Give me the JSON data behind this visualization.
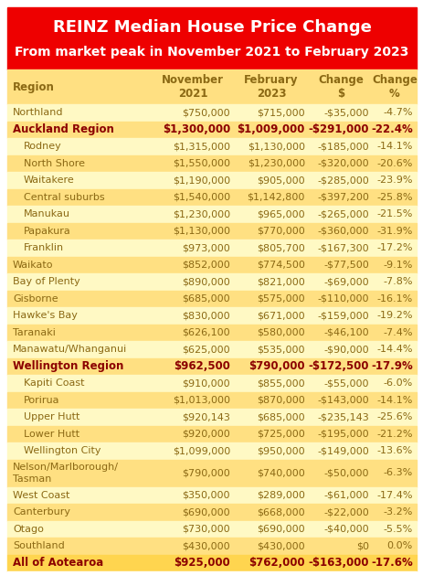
{
  "title_line1": "REINZ Median House Price Change",
  "title_line2": "From market peak in November 2021 to February 2023",
  "title_bg": "#EE0000",
  "title_fg": "#FFFFFF",
  "header_bg": "#FFE082",
  "rows": [
    {
      "region": "Northland",
      "bold": false,
      "indent": false,
      "nov": "$750,000",
      "feb": "$715,000",
      "chg_d": "-$35,000",
      "chg_p": "-4.7%",
      "bg": "#FFF9C4",
      "multiline": false
    },
    {
      "region": "Auckland Region",
      "bold": true,
      "indent": false,
      "nov": "$1,300,000",
      "feb": "$1,009,000",
      "chg_d": "-$291,000",
      "chg_p": "-22.4%",
      "bg": "#FFE082",
      "multiline": false
    },
    {
      "region": "Rodney",
      "bold": false,
      "indent": true,
      "nov": "$1,315,000",
      "feb": "$1,130,000",
      "chg_d": "-$185,000",
      "chg_p": "-14.1%",
      "bg": "#FFF9C4",
      "multiline": false
    },
    {
      "region": "North Shore",
      "bold": false,
      "indent": true,
      "nov": "$1,550,000",
      "feb": "$1,230,000",
      "chg_d": "-$320,000",
      "chg_p": "-20.6%",
      "bg": "#FFE082",
      "multiline": false
    },
    {
      "region": "Waitakere",
      "bold": false,
      "indent": true,
      "nov": "$1,190,000",
      "feb": "$905,000",
      "chg_d": "-$285,000",
      "chg_p": "-23.9%",
      "bg": "#FFF9C4",
      "multiline": false
    },
    {
      "region": "Central suburbs",
      "bold": false,
      "indent": true,
      "nov": "$1,540,000",
      "feb": "$1,142,800",
      "chg_d": "-$397,200",
      "chg_p": "-25.8%",
      "bg": "#FFE082",
      "multiline": false
    },
    {
      "region": "Manukau",
      "bold": false,
      "indent": true,
      "nov": "$1,230,000",
      "feb": "$965,000",
      "chg_d": "-$265,000",
      "chg_p": "-21.5%",
      "bg": "#FFF9C4",
      "multiline": false
    },
    {
      "region": "Papakura",
      "bold": false,
      "indent": true,
      "nov": "$1,130,000",
      "feb": "$770,000",
      "chg_d": "-$360,000",
      "chg_p": "-31.9%",
      "bg": "#FFE082",
      "multiline": false
    },
    {
      "region": "Franklin",
      "bold": false,
      "indent": true,
      "nov": "$973,000",
      "feb": "$805,700",
      "chg_d": "-$167,300",
      "chg_p": "-17.2%",
      "bg": "#FFF9C4",
      "multiline": false
    },
    {
      "region": "Waikato",
      "bold": false,
      "indent": false,
      "nov": "$852,000",
      "feb": "$774,500",
      "chg_d": "-$77,500",
      "chg_p": "-9.1%",
      "bg": "#FFE082",
      "multiline": false
    },
    {
      "region": "Bay of Plenty",
      "bold": false,
      "indent": false,
      "nov": "$890,000",
      "feb": "$821,000",
      "chg_d": "-$69,000",
      "chg_p": "-7.8%",
      "bg": "#FFF9C4",
      "multiline": false
    },
    {
      "region": "Gisborne",
      "bold": false,
      "indent": false,
      "nov": "$685,000",
      "feb": "$575,000",
      "chg_d": "-$110,000",
      "chg_p": "-16.1%",
      "bg": "#FFE082",
      "multiline": false
    },
    {
      "region": "Hawke's Bay",
      "bold": false,
      "indent": false,
      "nov": "$830,000",
      "feb": "$671,000",
      "chg_d": "-$159,000",
      "chg_p": "-19.2%",
      "bg": "#FFF9C4",
      "multiline": false
    },
    {
      "region": "Taranaki",
      "bold": false,
      "indent": false,
      "nov": "$626,100",
      "feb": "$580,000",
      "chg_d": "-$46,100",
      "chg_p": "-7.4%",
      "bg": "#FFE082",
      "multiline": false
    },
    {
      "region": "Manawatu/Whanganui",
      "bold": false,
      "indent": false,
      "nov": "$625,000",
      "feb": "$535,000",
      "chg_d": "-$90,000",
      "chg_p": "-14.4%",
      "bg": "#FFF9C4",
      "multiline": false
    },
    {
      "region": "Wellington Region",
      "bold": true,
      "indent": false,
      "nov": "$962,500",
      "feb": "$790,000",
      "chg_d": "-$172,500",
      "chg_p": "-17.9%",
      "bg": "#FFE082",
      "multiline": false
    },
    {
      "region": "Kapiti Coast",
      "bold": false,
      "indent": true,
      "nov": "$910,000",
      "feb": "$855,000",
      "chg_d": "-$55,000",
      "chg_p": "-6.0%",
      "bg": "#FFF9C4",
      "multiline": false
    },
    {
      "region": "Porirua",
      "bold": false,
      "indent": true,
      "nov": "$1,013,000",
      "feb": "$870,000",
      "chg_d": "-$143,000",
      "chg_p": "-14.1%",
      "bg": "#FFE082",
      "multiline": false
    },
    {
      "region": "Upper Hutt",
      "bold": false,
      "indent": true,
      "nov": "$920,143",
      "feb": "$685,000",
      "chg_d": "-$235,143",
      "chg_p": "-25.6%",
      "bg": "#FFF9C4",
      "multiline": false
    },
    {
      "region": "Lower Hutt",
      "bold": false,
      "indent": true,
      "nov": "$920,000",
      "feb": "$725,000",
      "chg_d": "-$195,000",
      "chg_p": "-21.2%",
      "bg": "#FFE082",
      "multiline": false
    },
    {
      "region": "Wellington City",
      "bold": false,
      "indent": true,
      "nov": "$1,099,000",
      "feb": "$950,000",
      "chg_d": "-$149,000",
      "chg_p": "-13.6%",
      "bg": "#FFF9C4",
      "multiline": false
    },
    {
      "region": "Nelson/Marlborough/\nTasman",
      "bold": false,
      "indent": false,
      "nov": "$790,000",
      "feb": "$740,000",
      "chg_d": "-$50,000",
      "chg_p": "-6.3%",
      "bg": "#FFE082",
      "multiline": true
    },
    {
      "region": "West Coast",
      "bold": false,
      "indent": false,
      "nov": "$350,000",
      "feb": "$289,000",
      "chg_d": "-$61,000",
      "chg_p": "-17.4%",
      "bg": "#FFF9C4",
      "multiline": false
    },
    {
      "region": "Canterbury",
      "bold": false,
      "indent": false,
      "nov": "$690,000",
      "feb": "$668,000",
      "chg_d": "-$22,000",
      "chg_p": "-3.2%",
      "bg": "#FFE082",
      "multiline": false
    },
    {
      "region": "Otago",
      "bold": false,
      "indent": false,
      "nov": "$730,000",
      "feb": "$690,000",
      "chg_d": "-$40,000",
      "chg_p": "-5.5%",
      "bg": "#FFF9C4",
      "multiline": false
    },
    {
      "region": "Southland",
      "bold": false,
      "indent": false,
      "nov": "$430,000",
      "feb": "$430,000",
      "chg_d": "$0",
      "chg_p": "0.0%",
      "bg": "#FFE082",
      "multiline": false
    },
    {
      "region": "All of Aotearoa",
      "bold": true,
      "indent": false,
      "nov": "$925,000",
      "feb": "$762,000",
      "chg_d": "-$163,000",
      "chg_p": "-17.6%",
      "bg": "#FFD54F",
      "multiline": false
    }
  ],
  "text_color": "#8B6914",
  "bold_text_color": "#8B0000",
  "figure_bg": "#FFFFFF",
  "border_color": "#CCCCCC"
}
